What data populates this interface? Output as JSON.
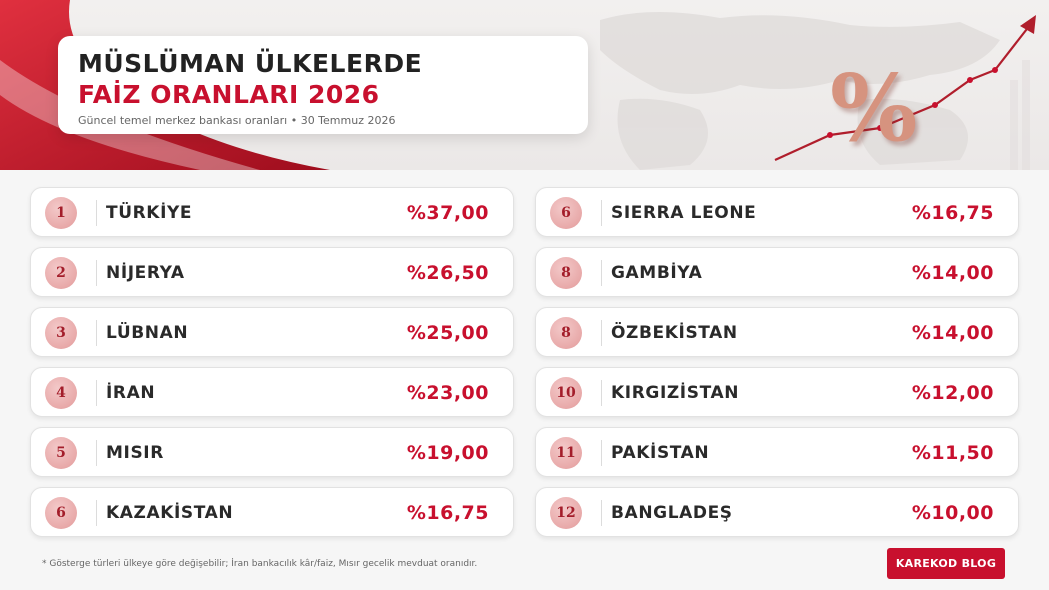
{
  "header": {
    "title_line1": "MÜSLÜMAN ÜLKELERDE",
    "title_line2": "FAİZ ORANLARI 2026",
    "subtitle": "Güncel temel merkez bankası oranları • 30 Temmuz 2026"
  },
  "decor": {
    "percent_symbol": "%",
    "accent_color": "#c8102e"
  },
  "left_list": [
    {
      "rank": "1",
      "country": "TÜRKİYE",
      "rate": "%37,00"
    },
    {
      "rank": "2",
      "country": "NİJERYA",
      "rate": "%26,50"
    },
    {
      "rank": "3",
      "country": "LÜBNAN",
      "rate": "%25,00"
    },
    {
      "rank": "4",
      "country": "İRAN",
      "rate": "%23,00"
    },
    {
      "rank": "5",
      "country": "MISIR",
      "rate": "%19,00"
    },
    {
      "rank": "6",
      "country": "KAZAKİSTAN",
      "rate": "%16,75"
    }
  ],
  "right_list": [
    {
      "rank": "6",
      "country": "SIERRA LEONE",
      "rate": "%16,75"
    },
    {
      "rank": "8",
      "country": "GAMBİYA",
      "rate": "%14,00"
    },
    {
      "rank": "8",
      "country": "ÖZBEKİSTAN",
      "rate": "%14,00"
    },
    {
      "rank": "10",
      "country": "KIRGIZİSTAN",
      "rate": "%12,00"
    },
    {
      "rank": "11",
      "country": "PAKİSTAN",
      "rate": "%11,50"
    },
    {
      "rank": "12",
      "country": "BANGLADEŞ",
      "rate": "%10,00"
    }
  ],
  "footer": {
    "footnote": "* Gösterge türleri ülkeye göre değişebilir; İran bankacılık kâr/faiz, Mısır gecelik mevduat oranıdır.",
    "brand": "KAREKOD BLOG"
  }
}
